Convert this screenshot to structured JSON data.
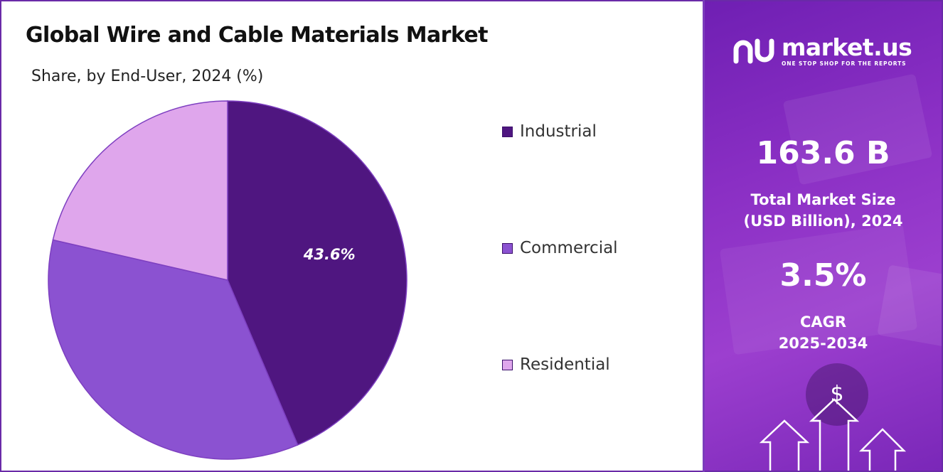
{
  "header": {
    "title": "Global Wire and Cable Materials Market",
    "subtitle": "Share, by End-User, 2024 (%)"
  },
  "chart_data": {
    "type": "pie",
    "title": "Global Wire and Cable Materials Market",
    "subtitle": "Share, by End-User, 2024 (%)",
    "categories": [
      "Industrial",
      "Commercial",
      "Residential"
    ],
    "values": [
      43.6,
      35.0,
      21.4
    ],
    "colors": [
      "#4f1680",
      "#8b52d1",
      "#dfa6ec"
    ],
    "data_labels": [
      "43.6%",
      "",
      ""
    ],
    "start_angle": "12 o'clock",
    "direction": "clockwise",
    "legend_position": "right"
  },
  "brand": {
    "name": "market.us",
    "tagline": "ONE STOP SHOP FOR THE REPORTS"
  },
  "stats": {
    "market_size_value": "163.6 B",
    "market_size_label_line1": "Total Market Size",
    "market_size_label_line2": "(USD Billion), 2024",
    "cagr_value": "3.5%",
    "cagr_label_line1": "CAGR",
    "cagr_label_line2": "2025-2034",
    "currency_symbol": "$"
  },
  "colors": {
    "accent": "#6a2aa8",
    "panel_purple": "#8a2fc4"
  }
}
